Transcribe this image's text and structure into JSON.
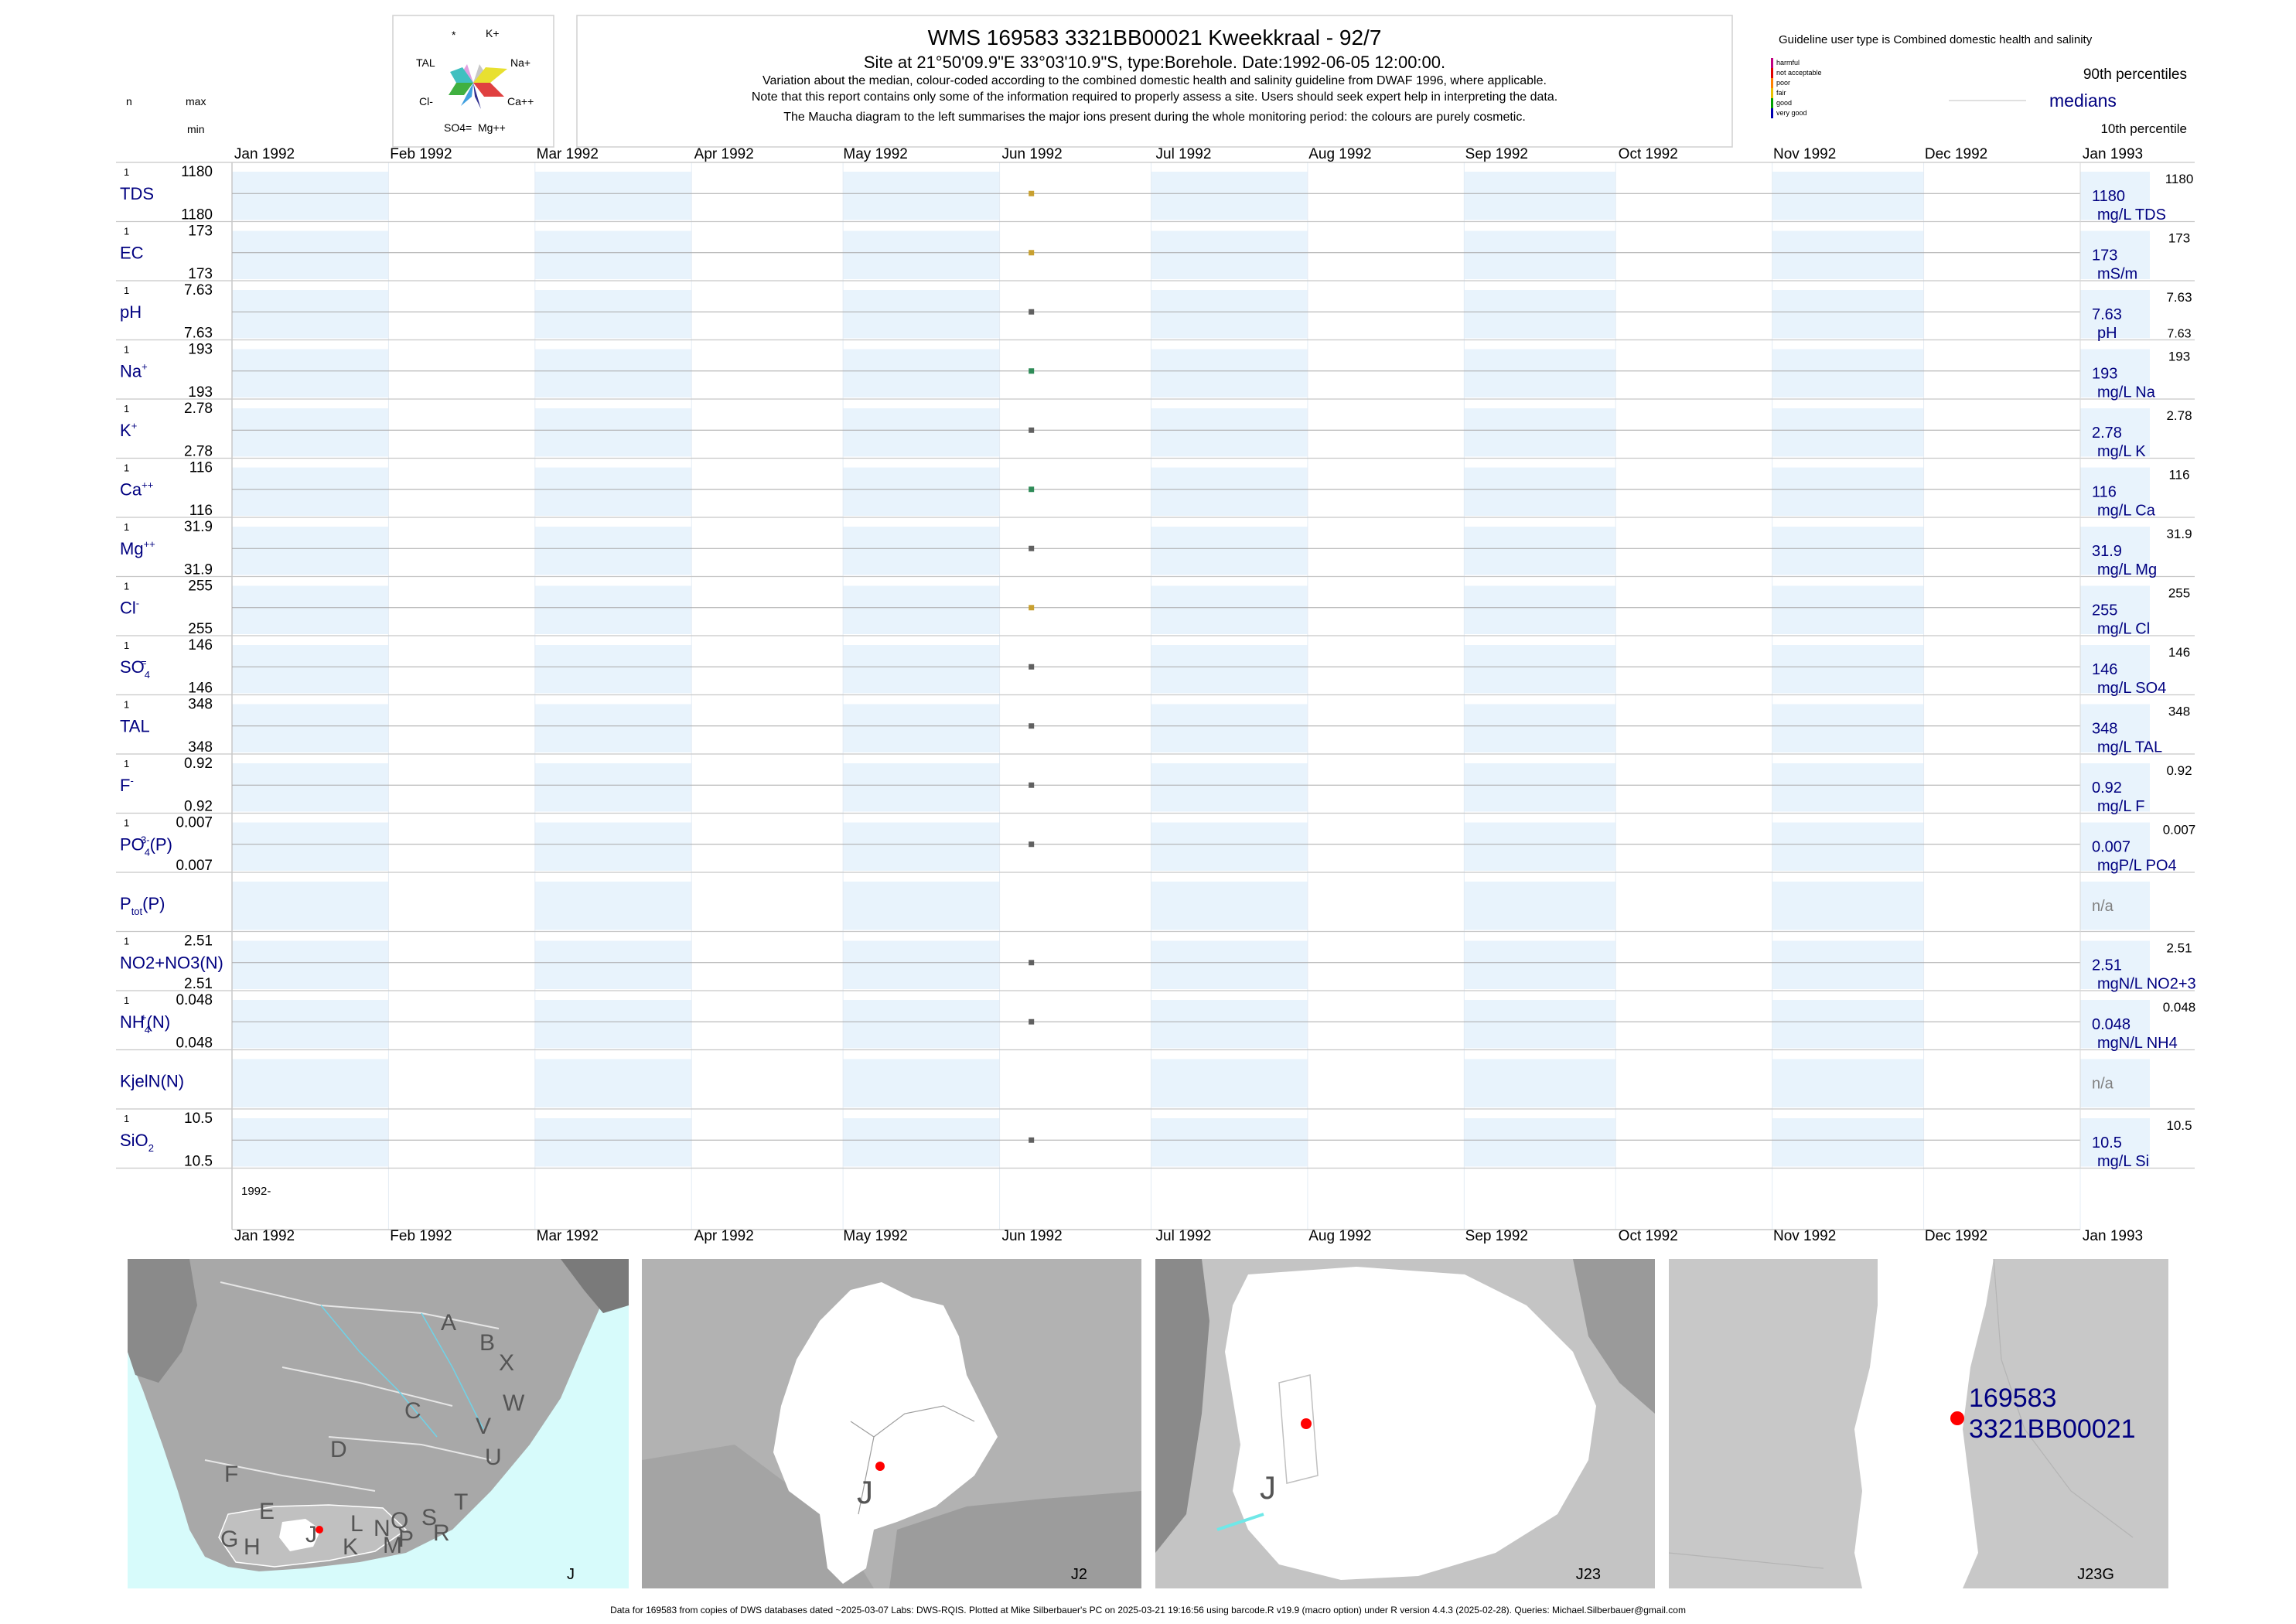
{
  "title": {
    "line1": "WMS 169583 3321BB00021 Kweekkraal - 92/7",
    "line2": "Site at 21°50'09.9\"E 33°03'10.9\"S, type:Borehole. Date:1992-06-05 12:00:00.",
    "line3": "Variation about the median,  colour-coded according to the combined domestic health and salinity guideline from DWAF 1996, where applicable.",
    "line4": "Note that this report contains only some of the information required to properly assess a site. Users should seek expert help in interpreting the data.",
    "line5": "The Maucha diagram to the left summarises the major ions present during the whole monitoring period: the colours are purely cosmetic."
  },
  "maucha": {
    "labels": [
      "*",
      "K+",
      "TAL",
      "Na+",
      "Cl-",
      "Ca++",
      "SO4=",
      "Mg++"
    ],
    "colors": {
      "na": "#e8e030",
      "k": "#c8c8c8",
      "ca": "#e04040",
      "mg": "#303090",
      "so4": "#40a0e0",
      "cl": "#40b040",
      "tal": "#40c0c0",
      "star": "#e0a0e0"
    }
  },
  "header_left": {
    "n": "n",
    "max": "max",
    "min": "min"
  },
  "legend": {
    "title": "Guideline user type is Combined domestic health and salinity",
    "classes": [
      {
        "label": "harmful",
        "color": "#c00080"
      },
      {
        "label": "not acceptable",
        "color": "#e00000"
      },
      {
        "label": "poor",
        "color": "#ff8000"
      },
      {
        "label": "fair",
        "color": "#e8c000"
      },
      {
        "label": "good",
        "color": "#00a000"
      },
      {
        "label": "very good",
        "color": "#0000b0"
      }
    ],
    "p90": "90th percentiles",
    "medians": "medians",
    "p10": "10th percentile"
  },
  "chart_data": {
    "type": "scatter",
    "x_ticks": [
      "Jan 1992",
      "Feb 1992",
      "Mar 1992",
      "Apr 1992",
      "May 1992",
      "Jun 1992",
      "Jul 1992",
      "Aug 1992",
      "Sep 1992",
      "Oct 1992",
      "Nov 1992",
      "Dec 1992",
      "Jan 1993"
    ],
    "xlim": [
      "1992-01-01",
      "1993-01-01"
    ],
    "year_label": "1992-",
    "sample_date": "1992-06-05",
    "variables": [
      {
        "name": "TDS",
        "n": "1",
        "max": "1180",
        "min": "1180",
        "value": 1180,
        "median": "1180",
        "unit": "mg/L TDS",
        "p90": "1180",
        "p10": "",
        "color": "#c8a030"
      },
      {
        "name": "EC",
        "n": "1",
        "max": "173",
        "min": "173",
        "value": 173,
        "median": "173",
        "unit": "mS/m",
        "p90": "173",
        "p10": "",
        "color": "#c8a030"
      },
      {
        "name": "pH",
        "n": "1",
        "max": "7.63",
        "min": "7.63",
        "value": 7.63,
        "median": "7.63",
        "unit": "pH",
        "p90": "7.63",
        "p10": "7.63",
        "color": "#606060"
      },
      {
        "name": "Na",
        "sup": "+",
        "n": "1",
        "max": "193",
        "min": "193",
        "value": 193,
        "median": "193",
        "unit": "mg/L Na",
        "p90": "193",
        "p10": "",
        "color": "#2e8b57"
      },
      {
        "name": "K",
        "sup": "+",
        "n": "1",
        "max": "2.78",
        "min": "2.78",
        "value": 2.78,
        "median": "2.78",
        "unit": "mg/L K",
        "p90": "2.78",
        "p10": "",
        "color": "#606060"
      },
      {
        "name": "Ca",
        "sup": "++",
        "n": "1",
        "max": "116",
        "min": "116",
        "value": 116,
        "median": "116",
        "unit": "mg/L Ca",
        "p90": "116",
        "p10": "",
        "color": "#2e8b57"
      },
      {
        "name": "Mg",
        "sup": "++",
        "n": "1",
        "max": "31.9",
        "min": "31.9",
        "value": 31.9,
        "median": "31.9",
        "unit": "mg/L Mg",
        "p90": "31.9",
        "p10": "",
        "color": "#606060"
      },
      {
        "name": "Cl",
        "sup": "-",
        "n": "1",
        "max": "255",
        "min": "255",
        "value": 255,
        "median": "255",
        "unit": "mg/L Cl",
        "p90": "255",
        "p10": "",
        "color": "#c8a030"
      },
      {
        "name": "SO",
        "sub": "4",
        "sup": "=",
        "n": "1",
        "max": "146",
        "min": "146",
        "value": 146,
        "median": "146",
        "unit": "mg/L SO4",
        "p90": "146",
        "p10": "",
        "color": "#606060"
      },
      {
        "name": "TAL",
        "n": "1",
        "max": "348",
        "min": "348",
        "value": 348,
        "median": "348",
        "unit": "mg/L TAL",
        "p90": "348",
        "p10": "",
        "color": "#606060"
      },
      {
        "name": "F",
        "sup": "-",
        "n": "1",
        "max": "0.92",
        "min": "0.92",
        "value": 0.92,
        "median": "0.92",
        "unit": "mg/L F",
        "p90": "0.92",
        "p10": "",
        "color": "#606060"
      },
      {
        "name": "PO",
        "sub": "4",
        "sup": "3-",
        "suffix": "(P)",
        "n": "1",
        "max": "0.007",
        "min": "0.007",
        "value": 0.007,
        "median": "0.007",
        "unit": "mgP/L PO4",
        "p90": "0.007",
        "p10": "",
        "color": "#606060"
      },
      {
        "name": "P",
        "sub": "tot",
        "suffix": "(P)",
        "n": "",
        "max": "",
        "min": "",
        "value": null,
        "median": "n/a",
        "unit": "",
        "p90": "",
        "p10": "",
        "color": "#606060"
      },
      {
        "name": "NO2+NO3(N)",
        "n": "1",
        "max": "2.51",
        "min": "2.51",
        "value": 2.51,
        "median": "2.51",
        "unit": "mgN/L NO2+3",
        "p90": "2.51",
        "p10": "",
        "color": "#606060"
      },
      {
        "name": "NH",
        "sub": "4",
        "sup": "+",
        "suffix": "(N)",
        "n": "1",
        "max": "0.048",
        "min": "0.048",
        "value": 0.048,
        "median": "0.048",
        "unit": "mgN/L NH4",
        "p90": "0.048",
        "p10": "",
        "color": "#606060"
      },
      {
        "name": "KjelN(N)",
        "n": "",
        "max": "",
        "min": "",
        "value": null,
        "median": "n/a",
        "unit": "",
        "p90": "",
        "p10": "",
        "color": "#606060"
      },
      {
        "name": "SiO",
        "sub": "2",
        "n": "1",
        "max": "10.5",
        "min": "10.5",
        "value": 10.5,
        "median": "10.5",
        "unit": "mg/L Si",
        "p90": "10.5",
        "p10": "",
        "color": "#606060"
      }
    ]
  },
  "maps": {
    "map1": {
      "id": "J",
      "region_labels": [
        "A",
        "B",
        "X",
        "C",
        "W",
        "D",
        "V",
        "U",
        "F",
        "T",
        "E",
        "Q",
        "S",
        "L",
        "N",
        "R",
        "G",
        "H",
        "K",
        "M",
        "P",
        "J"
      ]
    },
    "map2": {
      "id": "J2",
      "label": "J"
    },
    "map3": {
      "id": "J23",
      "label": "J"
    },
    "map4": {
      "id": "J23G",
      "site_line1": "169583",
      "site_line2": "3321BB00021"
    }
  },
  "footer": "Data for 169583 from copies of DWS databases dated ~2025-03-07 Labs: DWS-RQIS. Plotted at Mike Silberbauer's PC on 2025-03-21 19:16:56 using barcode.R v19.9 (macro option) under R version 4.4.3 (2025-02-28). Queries: Michael.Silberbauer@gmail.com"
}
